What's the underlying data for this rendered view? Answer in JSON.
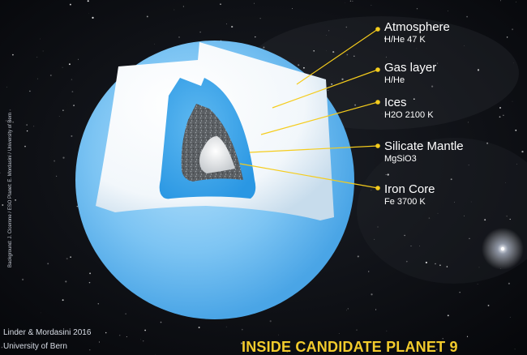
{
  "layers": [
    {
      "name": "Atmosphere",
      "detail": "H/He 47 K"
    },
    {
      "name": "Gas layer",
      "detail": "H/He"
    },
    {
      "name": "Ices",
      "detail": "H2O 2100 K"
    },
    {
      "name": "Silicate Mantle",
      "detail": "MgSiO3"
    },
    {
      "name": "Iron Core",
      "detail": "Fe 3700 K"
    }
  ],
  "title": "INSIDE CANDIDATE PLANET 9",
  "credits": {
    "line1": "Linder & Mordasini 2016",
    "line2": "University of Bern",
    "side": "Background: J. Cicerone / ESO Planet: E. Mordasini / University of Bern"
  },
  "colors": {
    "label_line": "#f5cc1c",
    "title": "#f2cb2c",
    "atmosphere": "#7cc4f3",
    "ice": "#39a5ea"
  }
}
